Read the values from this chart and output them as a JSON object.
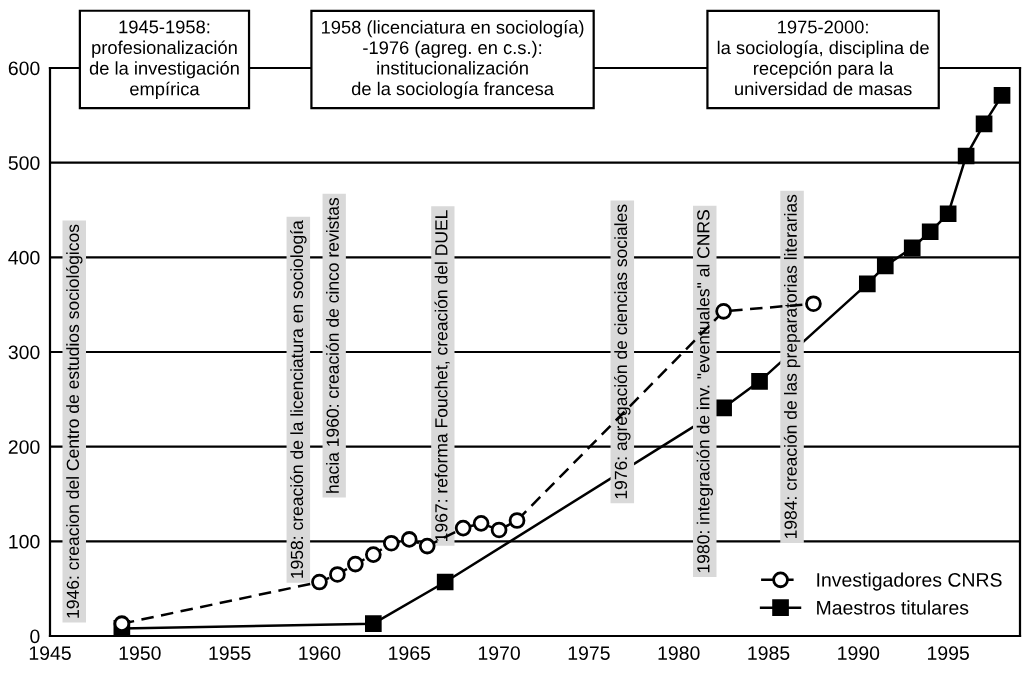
{
  "chart_data": {
    "type": "line",
    "x": [
      1949,
      1960,
      1961,
      1962,
      1963,
      1964,
      1965,
      1966,
      1968,
      1969,
      1970,
      1971,
      1982.5,
      1987.5
    ],
    "series": [
      {
        "name": "Investigadores CNRS",
        "color": "#000000",
        "marker": "circle",
        "line_style": "dashed",
        "values": [
          13,
          57,
          65,
          76,
          86,
          98,
          102,
          95,
          114,
          119,
          112,
          122,
          343,
          351
        ]
      },
      {
        "name": "Maestros titulares",
        "color": "#000000",
        "marker": "square",
        "line_style": "solid",
        "x": [
          1949,
          1963,
          1967,
          1982.5,
          1984.5,
          1990.5,
          1991.5,
          1993,
          1994,
          1995,
          1996,
          1997,
          1998
        ],
        "values": [
          8,
          13,
          57,
          241,
          269,
          372,
          391,
          410,
          427,
          446,
          507,
          541,
          571
        ]
      }
    ],
    "xlim": [
      1945,
      1999
    ],
    "xticks": [
      1945,
      1950,
      1955,
      1960,
      1965,
      1970,
      1975,
      1980,
      1985,
      1990,
      1995
    ],
    "ylim": [
      0,
      600
    ],
    "yticks": [
      0,
      100,
      200,
      300,
      400,
      500,
      600
    ],
    "grid": "y",
    "legend": "bottom right",
    "annotations": [
      "1945-1958:\nprofesionalización\nde la investigación\nempírica",
      "1958 (licenciatura en sociología)\n-1976 (agreg. en c.s.):\ninstitucionalización\nde la sociología francesa",
      "1975-2000:\nla sociología, disciplina de\nrecepción para la\nuniversidad de masas",
      "1946: creacion del Centro de estudios sociológicos",
      "1958: creación de la licenciatura en sociología",
      "hacia 1960: creación de cinco revistas",
      "1967: reforma Fouchet, creación del DUEL",
      "1976: agregación de ciencias sociales",
      "1980: integración de inv. \"eventuales\" al CNRS",
      "1984: creación de las preparatorias literarias"
    ]
  }
}
